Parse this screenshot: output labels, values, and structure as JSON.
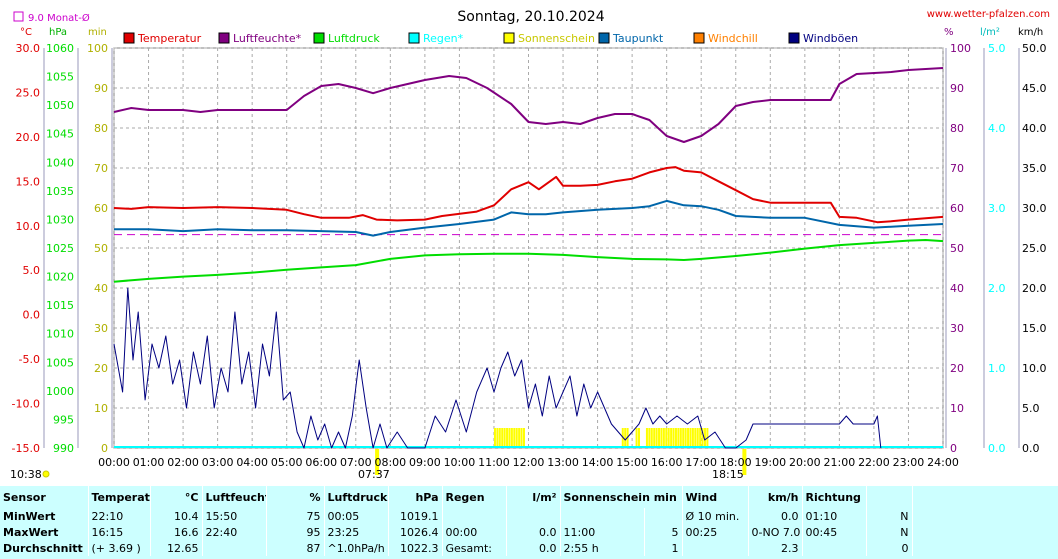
{
  "title": "Sonntag, 20.10.2024",
  "site": "www.wetter-pfalzen.com",
  "monat_label": "9.0 Monat-Ø",
  "units": {
    "c": "°C",
    "hpa": "hPa",
    "min": "min",
    "pct": "%",
    "lm2": "l/m²",
    "kmh": "km/h"
  },
  "colors": {
    "temperatur": "#e00000",
    "luftfeuchte": "#800080",
    "luftdruck": "#00dd00",
    "regen": "#00ffff",
    "sonnenschein": "#ffff00",
    "taupunkt": "#0066aa",
    "windchill": "#ff8000",
    "windboeen": "#000080",
    "monatsmittel": "#cc00cc"
  },
  "sun": {
    "sunrise": "07:37",
    "sunset": "18:15",
    "time_left": "10:38"
  },
  "chart_data": {
    "type": "line",
    "title": "Sonntag, 20.10.2024",
    "x_ticks": [
      "00:00",
      "01:00",
      "02:00",
      "03:00",
      "04:00",
      "05:00",
      "06:00",
      "07:00",
      "08:00",
      "09:00",
      "10:00",
      "11:00",
      "12:00",
      "13:00",
      "14:00",
      "15:00",
      "16:00",
      "17:00",
      "18:00",
      "19:00",
      "20:00",
      "21:00",
      "22:00",
      "23:00",
      "24:00"
    ],
    "axes": {
      "temp_c": {
        "range": [
          -15,
          30
        ],
        "ticks": [
          "30.0",
          "25.0",
          "20.0",
          "15.0",
          "10.0",
          "5.0",
          "0.0",
          "-5.0",
          "-10.0",
          "-15.0"
        ]
      },
      "pressure_hpa": {
        "range": [
          990,
          1060
        ],
        "ticks": [
          "1060",
          "1055",
          "1050",
          "1045",
          "1040",
          "1035",
          "1030",
          "1025",
          "1020",
          "1015",
          "1010",
          "1005",
          "1000",
          "995",
          "990"
        ]
      },
      "minutes": {
        "range": [
          0,
          100
        ],
        "ticks": [
          "100",
          "90",
          "80",
          "70",
          "60",
          "50",
          "40",
          "30",
          "20",
          "10",
          "0"
        ]
      },
      "humidity_pct": {
        "range": [
          0,
          100
        ],
        "ticks": [
          "100",
          "90",
          "80",
          "70",
          "60",
          "50",
          "40",
          "30",
          "20",
          "10",
          "0"
        ]
      },
      "rain_lm2": {
        "range": [
          0,
          5
        ],
        "ticks": [
          "5.0",
          "4.0",
          "3.0",
          "2.0",
          "1.0",
          "0.0"
        ]
      },
      "wind_kmh": {
        "range": [
          0,
          50
        ],
        "ticks": [
          "50.0",
          "45.0",
          "40.0",
          "35.0",
          "30.0",
          "25.0",
          "20.0",
          "15.0",
          "10.0",
          "5.0",
          "0.0"
        ]
      }
    },
    "legend": [
      "Temperatur",
      "Luftfeuchte*",
      "Luftdruck",
      "Regen*",
      "Sonnenschein",
      "Taupunkt",
      "Windchill",
      "Windböen"
    ],
    "monthly_mean_c": 9.0,
    "series": [
      {
        "name": "Temperatur",
        "axis": "temp_c",
        "points": [
          [
            0,
            12.0
          ],
          [
            0.5,
            11.9
          ],
          [
            1,
            12.1
          ],
          [
            2,
            12.0
          ],
          [
            3,
            12.1
          ],
          [
            4,
            12.0
          ],
          [
            5,
            11.8
          ],
          [
            5.5,
            11.3
          ],
          [
            6,
            10.9
          ],
          [
            6.8,
            10.9
          ],
          [
            7.2,
            11.2
          ],
          [
            7.6,
            10.7
          ],
          [
            8.2,
            10.6
          ],
          [
            9,
            10.7
          ],
          [
            9.5,
            11.1
          ],
          [
            10.5,
            11.6
          ],
          [
            11,
            12.3
          ],
          [
            11.5,
            14.1
          ],
          [
            12,
            14.9
          ],
          [
            12.3,
            14.1
          ],
          [
            12.8,
            15.5
          ],
          [
            13,
            14.5
          ],
          [
            13.5,
            14.5
          ],
          [
            14,
            14.6
          ],
          [
            14.5,
            15.0
          ],
          [
            15,
            15.3
          ],
          [
            15.5,
            16.0
          ],
          [
            16,
            16.5
          ],
          [
            16.25,
            16.6
          ],
          [
            16.5,
            16.2
          ],
          [
            17,
            16.0
          ],
          [
            17.5,
            15.0
          ],
          [
            18,
            14.0
          ],
          [
            18.5,
            13.0
          ],
          [
            19,
            12.6
          ],
          [
            20,
            12.6
          ],
          [
            20.75,
            12.6
          ],
          [
            21,
            11.0
          ],
          [
            21.5,
            10.9
          ],
          [
            22.1,
            10.4
          ],
          [
            22.5,
            10.5
          ],
          [
            23,
            10.7
          ],
          [
            24,
            11.0
          ]
        ]
      },
      {
        "name": "Luftfeuchte",
        "axis": "humidity_pct",
        "points": [
          [
            0,
            84
          ],
          [
            0.5,
            85
          ],
          [
            1,
            84.5
          ],
          [
            2,
            84.5
          ],
          [
            2.5,
            84
          ],
          [
            3,
            84.5
          ],
          [
            4,
            84.5
          ],
          [
            5,
            84.5
          ],
          [
            5.5,
            88
          ],
          [
            6,
            90.5
          ],
          [
            6.5,
            91
          ],
          [
            7,
            90
          ],
          [
            7.5,
            88.7
          ],
          [
            8,
            90
          ],
          [
            9,
            92
          ],
          [
            9.7,
            93
          ],
          [
            10.2,
            92.5
          ],
          [
            10.8,
            90
          ],
          [
            11.5,
            86
          ],
          [
            12,
            81.5
          ],
          [
            12.5,
            81
          ],
          [
            13,
            81.5
          ],
          [
            13.5,
            81
          ],
          [
            14,
            82.5
          ],
          [
            14.5,
            83.5
          ],
          [
            15,
            83.5
          ],
          [
            15.5,
            82
          ],
          [
            16,
            78
          ],
          [
            16.5,
            76.5
          ],
          [
            17,
            78
          ],
          [
            17.5,
            81
          ],
          [
            18,
            85.5
          ],
          [
            18.5,
            86.5
          ],
          [
            19,
            87
          ],
          [
            20,
            87
          ],
          [
            20.75,
            87
          ],
          [
            21,
            91
          ],
          [
            21.5,
            93.5
          ],
          [
            22.5,
            94
          ],
          [
            23,
            94.5
          ],
          [
            24,
            95
          ]
        ]
      },
      {
        "name": "Luftdruck",
        "axis": "pressure_hpa",
        "points": [
          [
            0,
            1019.1
          ],
          [
            1,
            1019.6
          ],
          [
            2,
            1020.0
          ],
          [
            3,
            1020.3
          ],
          [
            4,
            1020.7
          ],
          [
            5,
            1021.2
          ],
          [
            6,
            1021.6
          ],
          [
            7,
            1022.0
          ],
          [
            8,
            1023.1
          ],
          [
            9,
            1023.7
          ],
          [
            10,
            1023.9
          ],
          [
            11,
            1024.0
          ],
          [
            12,
            1024.0
          ],
          [
            13,
            1023.8
          ],
          [
            14,
            1023.4
          ],
          [
            15,
            1023.1
          ],
          [
            16,
            1023.0
          ],
          [
            16.5,
            1022.9
          ],
          [
            17,
            1023.1
          ],
          [
            18,
            1023.6
          ],
          [
            19,
            1024.2
          ],
          [
            20,
            1024.9
          ],
          [
            21,
            1025.5
          ],
          [
            22,
            1025.9
          ],
          [
            23,
            1026.3
          ],
          [
            23.5,
            1026.4
          ],
          [
            24,
            1026.2
          ]
        ]
      },
      {
        "name": "Taupunkt",
        "axis": "temp_c",
        "points": [
          [
            0,
            9.6
          ],
          [
            1,
            9.6
          ],
          [
            2,
            9.4
          ],
          [
            3,
            9.6
          ],
          [
            4,
            9.5
          ],
          [
            5,
            9.5
          ],
          [
            6,
            9.4
          ],
          [
            7,
            9.3
          ],
          [
            7.5,
            8.9
          ],
          [
            8,
            9.3
          ],
          [
            9,
            9.8
          ],
          [
            10,
            10.2
          ],
          [
            11,
            10.7
          ],
          [
            11.5,
            11.5
          ],
          [
            12,
            11.3
          ],
          [
            12.5,
            11.3
          ],
          [
            13,
            11.5
          ],
          [
            14,
            11.8
          ],
          [
            15,
            12.0
          ],
          [
            15.5,
            12.2
          ],
          [
            16,
            12.8
          ],
          [
            16.5,
            12.3
          ],
          [
            17,
            12.2
          ],
          [
            17.5,
            11.8
          ],
          [
            18,
            11.1
          ],
          [
            19,
            10.9
          ],
          [
            20,
            10.9
          ],
          [
            21,
            10.1
          ],
          [
            22,
            9.8
          ],
          [
            23,
            10.0
          ],
          [
            24,
            10.2
          ]
        ]
      },
      {
        "name": "Windböen",
        "axis": "wind_kmh",
        "points": [
          [
            0,
            13
          ],
          [
            0.25,
            7
          ],
          [
            0.4,
            20
          ],
          [
            0.55,
            11
          ],
          [
            0.7,
            17
          ],
          [
            0.9,
            6
          ],
          [
            1.1,
            13
          ],
          [
            1.3,
            10
          ],
          [
            1.5,
            14
          ],
          [
            1.7,
            8
          ],
          [
            1.9,
            11
          ],
          [
            2.1,
            5
          ],
          [
            2.3,
            12
          ],
          [
            2.5,
            8
          ],
          [
            2.7,
            14
          ],
          [
            2.9,
            5
          ],
          [
            3.1,
            10
          ],
          [
            3.3,
            7
          ],
          [
            3.5,
            17
          ],
          [
            3.7,
            8
          ],
          [
            3.9,
            12
          ],
          [
            4.1,
            5
          ],
          [
            4.3,
            13
          ],
          [
            4.5,
            9
          ],
          [
            4.7,
            17
          ],
          [
            4.9,
            6
          ],
          [
            5.1,
            7
          ],
          [
            5.3,
            2
          ],
          [
            5.5,
            0
          ],
          [
            5.7,
            4
          ],
          [
            5.9,
            1
          ],
          [
            6.1,
            3
          ],
          [
            6.3,
            0
          ],
          [
            6.5,
            2
          ],
          [
            6.7,
            0
          ],
          [
            6.9,
            4
          ],
          [
            7.1,
            11
          ],
          [
            7.3,
            5
          ],
          [
            7.5,
            0
          ],
          [
            7.7,
            3
          ],
          [
            7.9,
            0
          ],
          [
            8.2,
            2
          ],
          [
            8.5,
            0
          ],
          [
            9,
            0
          ],
          [
            9.3,
            4
          ],
          [
            9.6,
            2
          ],
          [
            9.9,
            6
          ],
          [
            10.2,
            2
          ],
          [
            10.5,
            7
          ],
          [
            10.8,
            10
          ],
          [
            11.0,
            7
          ],
          [
            11.2,
            10
          ],
          [
            11.4,
            12
          ],
          [
            11.6,
            9
          ],
          [
            11.8,
            11
          ],
          [
            12.0,
            5
          ],
          [
            12.2,
            8
          ],
          [
            12.4,
            4
          ],
          [
            12.6,
            9
          ],
          [
            12.8,
            5
          ],
          [
            13.0,
            7
          ],
          [
            13.2,
            9
          ],
          [
            13.4,
            4
          ],
          [
            13.6,
            8
          ],
          [
            13.8,
            5
          ],
          [
            14.0,
            7
          ],
          [
            14.2,
            5
          ],
          [
            14.4,
            3
          ],
          [
            14.6,
            2
          ],
          [
            14.8,
            1
          ],
          [
            15.0,
            2
          ],
          [
            15.2,
            3
          ],
          [
            15.4,
            5
          ],
          [
            15.6,
            3
          ],
          [
            15.8,
            4
          ],
          [
            16.0,
            3
          ],
          [
            16.3,
            4
          ],
          [
            16.6,
            3
          ],
          [
            16.9,
            4
          ],
          [
            17.1,
            1
          ],
          [
            17.4,
            2
          ],
          [
            17.7,
            0
          ],
          [
            18.0,
            0
          ],
          [
            18.3,
            1
          ],
          [
            18.5,
            3
          ],
          [
            19,
            3
          ],
          [
            20,
            3
          ],
          [
            21,
            3
          ],
          [
            21.2,
            4
          ],
          [
            21.4,
            3
          ],
          [
            22,
            3
          ],
          [
            22.1,
            4
          ],
          [
            22.2,
            0
          ]
        ]
      }
    ],
    "sunshine_blocks": [
      [
        11.0,
        11.9
      ],
      [
        14.7,
        14.9
      ],
      [
        15.1,
        15.2
      ],
      [
        15.4,
        17.2
      ]
    ]
  },
  "stats": {
    "header": [
      "Sensor",
      "Temperatur",
      "°C",
      "Luftfeuchte",
      "%",
      "Luftdruck",
      "hPa",
      "Regen",
      "l/m²",
      "Sonnenschein min",
      "Wind",
      "km/h",
      "Richtung"
    ],
    "rows": [
      [
        "MinWert",
        "22:10",
        "10.4",
        "15:50",
        "75",
        "00:05",
        "1019.1",
        "",
        "",
        "",
        "",
        "Ø 10 min.",
        "0.0",
        "01:10",
        "N"
      ],
      [
        "MaxWert",
        "16:15",
        "16.6",
        "22:40",
        "95",
        "23:25",
        "1026.4",
        "00:00",
        "0.0",
        "11:00",
        "5",
        "00:25",
        "0-NO 7.0",
        "00:45",
        "N"
      ],
      [
        "Durchschnitt",
        "(+ 3.69 )",
        "12.65",
        "",
        "87",
        "^1.0hPa/h",
        "1022.3",
        "Gesamt:",
        "0.0",
        "2:55 h",
        "1",
        "",
        "2.3",
        "",
        "0"
      ]
    ]
  }
}
